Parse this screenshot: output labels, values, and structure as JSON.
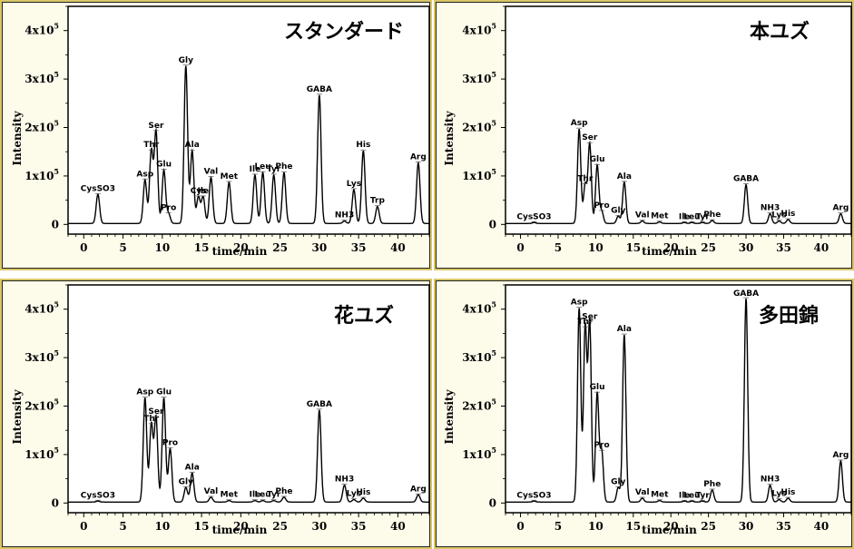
{
  "chart_data": [
    {
      "type": "line",
      "title": "スタンダード",
      "xlabel": "time/min",
      "ylabel": "Intensity",
      "xlim": [
        -2,
        44
      ],
      "ylim": [
        -20000,
        450000
      ],
      "x_ticks": [
        0,
        5,
        10,
        15,
        20,
        25,
        30,
        35,
        40
      ],
      "y_ticks": [
        {
          "value": 0,
          "label": "0"
        },
        {
          "value": 100000,
          "label": "1x10",
          "sup": "5"
        },
        {
          "value": 200000,
          "label": "2x10",
          "sup": "5"
        },
        {
          "value": 300000,
          "label": "3x10",
          "sup": "5"
        },
        {
          "value": 400000,
          "label": "4x10",
          "sup": "5"
        }
      ],
      "peaks": [
        {
          "label": "CysSO3",
          "x": 1.8,
          "y": 60000
        },
        {
          "label": "Asp",
          "x": 7.8,
          "y": 90000
        },
        {
          "label": "Thr",
          "x": 8.6,
          "y": 150000
        },
        {
          "label": "Ser",
          "x": 9.2,
          "y": 190000
        },
        {
          "label": "Glu",
          "x": 10.2,
          "y": 110000
        },
        {
          "label": "Pro",
          "x": 10.8,
          "y": 20000
        },
        {
          "label": "Gly",
          "x": 13.0,
          "y": 325000
        },
        {
          "label": "Ala",
          "x": 13.8,
          "y": 150000
        },
        {
          "label": "Cys",
          "x": 14.6,
          "y": 55000
        },
        {
          "label": "Ile",
          "x": 15.2,
          "y": 55000
        },
        {
          "label": "Val",
          "x": 16.2,
          "y": 95000
        },
        {
          "label": "Met",
          "x": 18.5,
          "y": 85000
        },
        {
          "label": "Ile",
          "x": 21.8,
          "y": 100000
        },
        {
          "label": "Leu",
          "x": 22.8,
          "y": 105000
        },
        {
          "label": "Tyr",
          "x": 24.2,
          "y": 100000
        },
        {
          "label": "Phe",
          "x": 25.5,
          "y": 105000
        },
        {
          "label": "GABA",
          "x": 30.0,
          "y": 265000
        },
        {
          "label": "NH3",
          "x": 33.2,
          "y": 5000
        },
        {
          "label": "Lys",
          "x": 34.4,
          "y": 70000
        },
        {
          "label": "His",
          "x": 35.6,
          "y": 150000
        },
        {
          "label": "Trp",
          "x": 37.4,
          "y": 35000
        },
        {
          "label": "Arg",
          "x": 42.6,
          "y": 125000
        }
      ]
    },
    {
      "type": "line",
      "title": "本ユズ",
      "xlabel": "time/min",
      "ylabel": "Intensity",
      "xlim": [
        -2,
        44
      ],
      "ylim": [
        -20000,
        450000
      ],
      "x_ticks": [
        0,
        5,
        10,
        15,
        20,
        25,
        30,
        35,
        40
      ],
      "y_ticks": [
        {
          "value": 0,
          "label": "0"
        },
        {
          "value": 100000,
          "label": "1x10",
          "sup": "5"
        },
        {
          "value": 200000,
          "label": "2x10",
          "sup": "5"
        },
        {
          "value": 300000,
          "label": "3x10",
          "sup": "5"
        },
        {
          "value": 400000,
          "label": "4x10",
          "sup": "5"
        }
      ],
      "peaks": [
        {
          "label": "CysSO3",
          "x": 1.8,
          "y": 2000
        },
        {
          "label": "Asp",
          "x": 7.8,
          "y": 195000
        },
        {
          "label": "Thr",
          "x": 8.6,
          "y": 80000
        },
        {
          "label": "Ser",
          "x": 9.2,
          "y": 165000
        },
        {
          "label": "Glu",
          "x": 10.2,
          "y": 120000
        },
        {
          "label": "Pro",
          "x": 10.8,
          "y": 25000
        },
        {
          "label": "Gly",
          "x": 13.0,
          "y": 15000
        },
        {
          "label": "Ala",
          "x": 13.8,
          "y": 85000
        },
        {
          "label": "Val",
          "x": 16.2,
          "y": 5000
        },
        {
          "label": "Met",
          "x": 18.5,
          "y": 3000
        },
        {
          "label": "Ile",
          "x": 21.8,
          "y": 2000
        },
        {
          "label": "Leu",
          "x": 22.8,
          "y": 2000
        },
        {
          "label": "Tyr",
          "x": 24.2,
          "y": 2000
        },
        {
          "label": "Phe",
          "x": 25.5,
          "y": 6000
        },
        {
          "label": "GABA",
          "x": 30.0,
          "y": 80000
        },
        {
          "label": "NH3",
          "x": 33.2,
          "y": 20000
        },
        {
          "label": "Lys",
          "x": 34.4,
          "y": 5000
        },
        {
          "label": "His",
          "x": 35.6,
          "y": 8000
        },
        {
          "label": "Arg",
          "x": 42.6,
          "y": 20000
        }
      ]
    },
    {
      "type": "line",
      "title": "花ユズ",
      "xlabel": "time/min",
      "ylabel": "Intensity",
      "xlim": [
        -2,
        44
      ],
      "ylim": [
        -20000,
        450000
      ],
      "x_ticks": [
        0,
        5,
        10,
        15,
        20,
        25,
        30,
        35,
        40
      ],
      "y_ticks": [
        {
          "value": 0,
          "label": "0"
        },
        {
          "value": 100000,
          "label": "1x10",
          "sup": "5"
        },
        {
          "value": 200000,
          "label": "2x10",
          "sup": "5"
        },
        {
          "value": 300000,
          "label": "3x10",
          "sup": "5"
        },
        {
          "value": 400000,
          "label": "4x10",
          "sup": "5"
        }
      ],
      "peaks": [
        {
          "label": "CysSO3",
          "x": 1.8,
          "y": 2000
        },
        {
          "label": "Asp",
          "x": 7.8,
          "y": 215000
        },
        {
          "label": "Thr",
          "x": 8.6,
          "y": 160000
        },
        {
          "label": "Ser",
          "x": 9.2,
          "y": 175000
        },
        {
          "label": "Glu",
          "x": 10.2,
          "y": 215000
        },
        {
          "label": "Pro",
          "x": 11.0,
          "y": 110000
        },
        {
          "label": "Gly",
          "x": 13.0,
          "y": 30000
        },
        {
          "label": "Ala",
          "x": 13.8,
          "y": 60000
        },
        {
          "label": "Val",
          "x": 16.2,
          "y": 10000
        },
        {
          "label": "Met",
          "x": 18.5,
          "y": 3000
        },
        {
          "label": "Ile",
          "x": 21.8,
          "y": 3000
        },
        {
          "label": "Leu",
          "x": 22.8,
          "y": 3000
        },
        {
          "label": "Tyr",
          "x": 24.2,
          "y": 3000
        },
        {
          "label": "Phe",
          "x": 25.5,
          "y": 10000
        },
        {
          "label": "GABA",
          "x": 30.0,
          "y": 190000
        },
        {
          "label": "NH3",
          "x": 33.2,
          "y": 35000
        },
        {
          "label": "Lys",
          "x": 34.4,
          "y": 5000
        },
        {
          "label": "His",
          "x": 35.6,
          "y": 8000
        },
        {
          "label": "Arg",
          "x": 42.6,
          "y": 15000
        }
      ]
    },
    {
      "type": "line",
      "title": "多田錦",
      "xlabel": "time/min",
      "ylabel": "Intensity",
      "xlim": [
        -2,
        44
      ],
      "ylim": [
        -20000,
        450000
      ],
      "x_ticks": [
        0,
        5,
        10,
        15,
        20,
        25,
        30,
        35,
        40
      ],
      "y_ticks": [
        {
          "value": 0,
          "label": "0"
        },
        {
          "value": 100000,
          "label": "1x10",
          "sup": "5"
        },
        {
          "value": 200000,
          "label": "2x10",
          "sup": "5"
        },
        {
          "value": 300000,
          "label": "3x10",
          "sup": "5"
        },
        {
          "value": 400000,
          "label": "4x10",
          "sup": "5"
        }
      ],
      "peaks": [
        {
          "label": "CysSO3",
          "x": 1.8,
          "y": 2000
        },
        {
          "label": "Asp",
          "x": 7.8,
          "y": 400000
        },
        {
          "label": "Thr",
          "x": 8.6,
          "y": 360000
        },
        {
          "label": "Ser",
          "x": 9.2,
          "y": 370000
        },
        {
          "label": "Glu",
          "x": 10.2,
          "y": 225000
        },
        {
          "label": "Pro",
          "x": 10.8,
          "y": 105000
        },
        {
          "label": "Gly",
          "x": 13.0,
          "y": 30000
        },
        {
          "label": "Ala",
          "x": 13.8,
          "y": 345000
        },
        {
          "label": "Val",
          "x": 16.2,
          "y": 8000
        },
        {
          "label": "Met",
          "x": 18.5,
          "y": 3000
        },
        {
          "label": "Ile",
          "x": 21.8,
          "y": 2000
        },
        {
          "label": "Leu",
          "x": 22.8,
          "y": 2000
        },
        {
          "label": "Tyr",
          "x": 24.2,
          "y": 2000
        },
        {
          "label": "Phe",
          "x": 25.5,
          "y": 25000
        },
        {
          "label": "GABA",
          "x": 30.0,
          "y": 420000
        },
        {
          "label": "NH3",
          "x": 33.2,
          "y": 35000
        },
        {
          "label": "Lys",
          "x": 34.4,
          "y": 5000
        },
        {
          "label": "His",
          "x": 35.6,
          "y": 8000
        },
        {
          "label": "Arg",
          "x": 42.6,
          "y": 85000
        }
      ]
    }
  ]
}
